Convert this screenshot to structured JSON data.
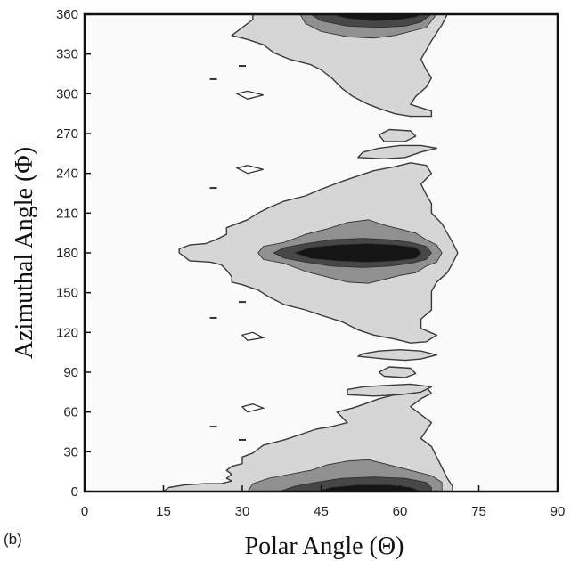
{
  "chart_data": {
    "type": "contour",
    "panel_label": "(b)",
    "xlabel": "Polar Angle (Θ)",
    "ylabel": "Azimuthal Angle (Φ)",
    "xlim": [
      0,
      90
    ],
    "ylim": [
      0,
      360
    ],
    "xticks": [
      "0",
      "15",
      "30",
      "45",
      "60",
      "75",
      "90"
    ],
    "yticks": [
      "0",
      "30",
      "60",
      "90",
      "120",
      "150",
      "180",
      "210",
      "240",
      "270",
      "300",
      "330",
      "360"
    ],
    "grid": false,
    "levels": [
      {
        "level": 1,
        "color": "#d6d6d6"
      },
      {
        "level": 2,
        "color": "#909090"
      },
      {
        "level": 3,
        "color": "#474747"
      },
      {
        "level": 4,
        "color": "#151515"
      }
    ],
    "regions": [
      {
        "name": "lobe-low",
        "level": 1,
        "points": [
          [
            15,
            0
          ],
          [
            16,
            3
          ],
          [
            19,
            5
          ],
          [
            23,
            6
          ],
          [
            26,
            6
          ],
          [
            28,
            8
          ],
          [
            27,
            10
          ],
          [
            28,
            13
          ],
          [
            27,
            16
          ],
          [
            28,
            19
          ],
          [
            30,
            21
          ],
          [
            30,
            26
          ],
          [
            32,
            29
          ],
          [
            34,
            35
          ],
          [
            38,
            39
          ],
          [
            41,
            43
          ],
          [
            44,
            47
          ],
          [
            47,
            49
          ],
          [
            50,
            52
          ],
          [
            49,
            56
          ],
          [
            48,
            60
          ],
          [
            51,
            63
          ],
          [
            54,
            67
          ],
          [
            56,
            70
          ],
          [
            59,
            73
          ],
          [
            62,
            76
          ],
          [
            65,
            79
          ],
          [
            66,
            74
          ],
          [
            64,
            70
          ],
          [
            62,
            64
          ],
          [
            64,
            58
          ],
          [
            66,
            52
          ],
          [
            65,
            46
          ],
          [
            64,
            40
          ],
          [
            66,
            34
          ],
          [
            67,
            26
          ],
          [
            68,
            18
          ],
          [
            69,
            10
          ],
          [
            70,
            4
          ],
          [
            70,
            0
          ]
        ]
      },
      {
        "name": "lobe-top",
        "level": 1,
        "points": [
          [
            32,
            360
          ],
          [
            32,
            356
          ],
          [
            30,
            350
          ],
          [
            28,
            344
          ],
          [
            31,
            341
          ],
          [
            34,
            337
          ],
          [
            36,
            331
          ],
          [
            39,
            326
          ],
          [
            43,
            322
          ],
          [
            45,
            318
          ],
          [
            47,
            312
          ],
          [
            49,
            304
          ],
          [
            51,
            298
          ],
          [
            54,
            292
          ],
          [
            56,
            289
          ],
          [
            59,
            285
          ],
          [
            62,
            283
          ],
          [
            66,
            283
          ],
          [
            66,
            287
          ],
          [
            62,
            292
          ],
          [
            63,
            298
          ],
          [
            65,
            305
          ],
          [
            66,
            312
          ],
          [
            65,
            318
          ],
          [
            64,
            326
          ],
          [
            65,
            333
          ],
          [
            66,
            340
          ],
          [
            67,
            346
          ],
          [
            68,
            352
          ],
          [
            69,
            360
          ]
        ]
      },
      {
        "name": "lobe-mid",
        "level": 1,
        "points": [
          [
            18,
            180
          ],
          [
            20,
            174
          ],
          [
            24,
            173
          ],
          [
            26,
            171
          ],
          [
            27,
            167
          ],
          [
            28,
            162
          ],
          [
            28,
            158
          ],
          [
            30,
            156
          ],
          [
            33,
            152
          ],
          [
            35,
            147
          ],
          [
            38,
            141
          ],
          [
            42,
            137
          ],
          [
            45,
            133
          ],
          [
            49,
            128
          ],
          [
            52,
            122
          ],
          [
            55,
            118
          ],
          [
            59,
            115
          ],
          [
            62,
            112
          ],
          [
            65,
            113
          ],
          [
            67,
            118
          ],
          [
            64,
            123
          ],
          [
            64,
            130
          ],
          [
            66,
            137
          ],
          [
            66,
            144
          ],
          [
            66,
            151
          ],
          [
            67,
            158
          ],
          [
            69,
            165
          ],
          [
            70,
            172
          ],
          [
            71,
            180
          ],
          [
            70,
            188
          ],
          [
            69,
            195
          ],
          [
            68,
            202
          ],
          [
            66,
            210
          ],
          [
            66,
            217
          ],
          [
            65,
            224
          ],
          [
            64,
            232
          ],
          [
            66,
            240
          ],
          [
            65,
            246
          ],
          [
            62,
            248
          ],
          [
            59,
            245
          ],
          [
            55,
            242
          ],
          [
            52,
            238
          ],
          [
            49,
            234
          ],
          [
            45,
            228
          ],
          [
            42,
            223
          ],
          [
            38,
            219
          ],
          [
            35,
            214
          ],
          [
            33,
            210
          ],
          [
            31,
            205
          ],
          [
            29,
            202
          ],
          [
            27,
            199
          ],
          [
            27,
            194
          ],
          [
            25,
            190
          ],
          [
            23,
            187
          ],
          [
            20,
            186
          ],
          [
            18,
            183
          ]
        ]
      },
      {
        "name": "island-mid-hi",
        "level": 1,
        "points": [
          [
            52,
            252
          ],
          [
            57,
            251
          ],
          [
            61,
            252
          ],
          [
            64,
            256
          ],
          [
            67,
            259
          ],
          [
            64,
            261
          ],
          [
            60,
            261
          ],
          [
            56,
            259
          ],
          [
            53,
            256
          ]
        ]
      },
      {
        "name": "island-top-hi",
        "level": 1,
        "points": [
          [
            57,
            264
          ],
          [
            61,
            264
          ],
          [
            63,
            268
          ],
          [
            62,
            272
          ],
          [
            58,
            273
          ],
          [
            56,
            269
          ]
        ]
      },
      {
        "name": "island-mid-lo",
        "level": 1,
        "points": [
          [
            52,
            102
          ],
          [
            57,
            100
          ],
          [
            61,
            99
          ],
          [
            64,
            100
          ],
          [
            67,
            103
          ],
          [
            64,
            106
          ],
          [
            60,
            107
          ],
          [
            56,
            106
          ],
          [
            53,
            104
          ]
        ]
      },
      {
        "name": "island-low-hi",
        "level": 1,
        "points": [
          [
            57,
            87
          ],
          [
            61,
            86
          ],
          [
            63,
            89
          ],
          [
            62,
            93
          ],
          [
            58,
            94
          ],
          [
            56,
            90
          ]
        ]
      },
      {
        "name": "island-low-lo",
        "level": 1,
        "points": [
          [
            50,
            73
          ],
          [
            55,
            72
          ],
          [
            60,
            73
          ],
          [
            64,
            75
          ],
          [
            66,
            79
          ],
          [
            62,
            81
          ],
          [
            57,
            80
          ],
          [
            53,
            79
          ],
          [
            50,
            77
          ]
        ]
      },
      {
        "name": "lobe-low-l2",
        "level": 2,
        "points": [
          [
            31,
            0
          ],
          [
            32,
            6
          ],
          [
            35,
            10
          ],
          [
            39,
            13
          ],
          [
            43,
            16
          ],
          [
            46,
            20
          ],
          [
            50,
            23
          ],
          [
            54,
            24
          ],
          [
            57,
            21
          ],
          [
            60,
            18
          ],
          [
            63,
            15
          ],
          [
            66,
            12
          ],
          [
            68,
            7
          ],
          [
            68,
            0
          ]
        ]
      },
      {
        "name": "lobe-top-l2",
        "level": 2,
        "points": [
          [
            41,
            360
          ],
          [
            42,
            353
          ],
          [
            45,
            347
          ],
          [
            50,
            343
          ],
          [
            55,
            342
          ],
          [
            59,
            344
          ],
          [
            62,
            347
          ],
          [
            65,
            350
          ],
          [
            66,
            355
          ],
          [
            67,
            360
          ]
        ]
      },
      {
        "name": "lobe-mid-l2",
        "level": 2,
        "points": [
          [
            33,
            180
          ],
          [
            34,
            175
          ],
          [
            38,
            172
          ],
          [
            42,
            166
          ],
          [
            46,
            162
          ],
          [
            50,
            158
          ],
          [
            54,
            157
          ],
          [
            57,
            160
          ],
          [
            60,
            163
          ],
          [
            63,
            165
          ],
          [
            65,
            170
          ],
          [
            67,
            173
          ],
          [
            68,
            180
          ],
          [
            67,
            186
          ],
          [
            65,
            190
          ],
          [
            63,
            195
          ],
          [
            60,
            198
          ],
          [
            57,
            201
          ],
          [
            54,
            205
          ],
          [
            50,
            203
          ],
          [
            46,
            198
          ],
          [
            42,
            194
          ],
          [
            38,
            188
          ],
          [
            34,
            185
          ]
        ]
      },
      {
        "name": "lobe-low-l3",
        "level": 3,
        "points": [
          [
            37,
            0
          ],
          [
            40,
            4
          ],
          [
            44,
            7
          ],
          [
            49,
            10
          ],
          [
            55,
            11
          ],
          [
            61,
            10
          ],
          [
            65,
            7
          ],
          [
            66,
            3
          ],
          [
            66,
            0
          ]
        ]
      },
      {
        "name": "lobe-top-l3",
        "level": 3,
        "points": [
          [
            43,
            360
          ],
          [
            45,
            355
          ],
          [
            50,
            351
          ],
          [
            56,
            350
          ],
          [
            61,
            351
          ],
          [
            64,
            354
          ],
          [
            66,
            360
          ]
        ]
      },
      {
        "name": "lobe-mid-l3",
        "level": 3,
        "points": [
          [
            36,
            180
          ],
          [
            38,
            176
          ],
          [
            42,
            173
          ],
          [
            47,
            170
          ],
          [
            53,
            169
          ],
          [
            58,
            170
          ],
          [
            62,
            172
          ],
          [
            65,
            175
          ],
          [
            66,
            180
          ],
          [
            65,
            185
          ],
          [
            62,
            188
          ],
          [
            58,
            190
          ],
          [
            53,
            191
          ],
          [
            47,
            190
          ],
          [
            42,
            187
          ],
          [
            38,
            184
          ]
        ]
      },
      {
        "name": "lobe-mid-l4",
        "level": 4,
        "points": [
          [
            40,
            180
          ],
          [
            43,
            176
          ],
          [
            48,
            174
          ],
          [
            54,
            173
          ],
          [
            59,
            174
          ],
          [
            63,
            176
          ],
          [
            64,
            180
          ],
          [
            63,
            184
          ],
          [
            59,
            186
          ],
          [
            54,
            187
          ],
          [
            48,
            186
          ],
          [
            43,
            184
          ]
        ]
      },
      {
        "name": "lobe-low-l4",
        "level": 4,
        "points": [
          [
            44,
            0
          ],
          [
            47,
            3
          ],
          [
            52,
            5
          ],
          [
            58,
            5
          ],
          [
            62,
            3
          ],
          [
            64,
            0
          ]
        ]
      },
      {
        "name": "lobe-top-l4",
        "level": 4,
        "points": [
          [
            47,
            360
          ],
          [
            50,
            357
          ],
          [
            55,
            355
          ],
          [
            60,
            356
          ],
          [
            63,
            358
          ],
          [
            64,
            360
          ]
        ]
      }
    ],
    "fleck_regions": [
      {
        "name": "fleck-1",
        "points": [
          [
            29,
            244
          ],
          [
            31,
            246
          ],
          [
            34,
            243
          ],
          [
            31,
            240
          ]
        ]
      },
      {
        "name": "fleck-2",
        "points": [
          [
            30,
            64
          ],
          [
            32,
            66
          ],
          [
            34,
            63
          ],
          [
            31,
            60
          ]
        ]
      },
      {
        "name": "fleck-3",
        "points": [
          [
            30,
            118
          ],
          [
            32,
            120
          ],
          [
            34,
            116
          ],
          [
            31,
            114
          ]
        ]
      },
      {
        "name": "fleck-4",
        "points": [
          [
            29,
            300
          ],
          [
            31,
            302
          ],
          [
            34,
            299
          ],
          [
            31,
            296
          ]
        ]
      }
    ],
    "dashes": [
      {
        "x": 24.5,
        "y": 311
      },
      {
        "x": 24.5,
        "y": 229
      },
      {
        "x": 24.5,
        "y": 131
      },
      {
        "x": 24.5,
        "y": 49
      },
      {
        "x": 30,
        "y": 321
      },
      {
        "x": 30,
        "y": 143
      },
      {
        "x": 30,
        "y": 39
      }
    ]
  }
}
